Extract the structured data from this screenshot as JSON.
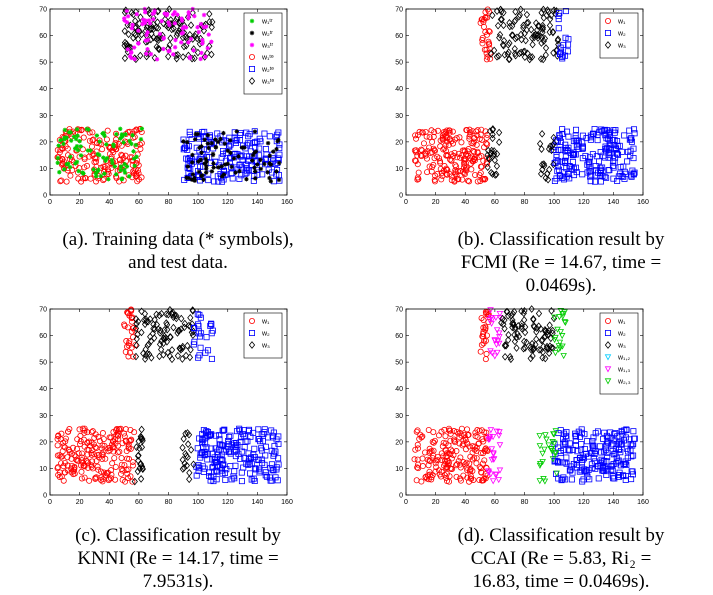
{
  "chart_data": [
    {
      "type": "scatter",
      "id": "a",
      "caption": [
        "(a). Training data (* symbols),",
        "and test data."
      ],
      "xlim": [
        0,
        160
      ],
      "ylim": [
        0,
        70
      ],
      "xticks": [
        0,
        20,
        40,
        60,
        80,
        100,
        120,
        140,
        160
      ],
      "yticks": [
        0,
        10,
        20,
        30,
        40,
        50,
        60,
        70
      ],
      "legend": {
        "position": "top-right",
        "entries": [
          {
            "label": "w₁ᵗʳ",
            "marker": "star",
            "color": "#00cc00"
          },
          {
            "label": "w₂ᵗʳ",
            "marker": "star",
            "color": "#000000"
          },
          {
            "label": "w₃ᵗʳ",
            "marker": "star",
            "color": "#ff00ff"
          },
          {
            "label": "w₁ᵗᵉ",
            "marker": "circle",
            "color": "#ff0000"
          },
          {
            "label": "w₂ᵗᵉ",
            "marker": "square",
            "color": "#0000ff"
          },
          {
            "label": "w₃ᵗᵉ",
            "marker": "diamond",
            "color": "#000000"
          }
        ]
      },
      "series": [
        {
          "marker": "circle",
          "color": "#ff0000",
          "n": 200,
          "x": [
            5,
            62
          ],
          "y": [
            5,
            25
          ]
        },
        {
          "marker": "star",
          "color": "#00cc00",
          "n": 90,
          "x": [
            5,
            62
          ],
          "y": [
            5,
            25
          ]
        },
        {
          "marker": "square",
          "color": "#0000ff",
          "n": 200,
          "x": [
            90,
            155
          ],
          "y": [
            5,
            24
          ]
        },
        {
          "marker": "star",
          "color": "#000000",
          "n": 90,
          "x": [
            90,
            155
          ],
          "y": [
            5,
            24
          ]
        },
        {
          "marker": "diamond",
          "color": "#000000",
          "n": 140,
          "x": [
            50,
            110
          ],
          "y": [
            51,
            70
          ]
        },
        {
          "marker": "star",
          "color": "#ff00ff",
          "n": 90,
          "x": [
            50,
            110
          ],
          "y": [
            51,
            70
          ]
        }
      ]
    },
    {
      "type": "scatter",
      "id": "b",
      "caption": [
        "(b). Classification result by",
        "FCMI (Re = 14.67, time =",
        "0.0469s)."
      ],
      "xlim": [
        0,
        160
      ],
      "ylim": [
        0,
        70
      ],
      "xticks": [
        0,
        20,
        40,
        60,
        80,
        100,
        120,
        140,
        160
      ],
      "yticks": [
        0,
        10,
        20,
        30,
        40,
        50,
        60,
        70
      ],
      "legend": {
        "position": "top-right",
        "entries": [
          {
            "label": "w₁",
            "marker": "circle",
            "color": "#ff0000"
          },
          {
            "label": "w₂",
            "marker": "square",
            "color": "#0000ff"
          },
          {
            "label": "w₃",
            "marker": "diamond",
            "color": "#000000"
          }
        ]
      },
      "series": [
        {
          "marker": "circle",
          "color": "#ff0000",
          "n": 210,
          "x": [
            5,
            55
          ],
          "y": [
            5,
            25
          ]
        },
        {
          "marker": "diamond",
          "color": "#000000",
          "n": 25,
          "x": [
            55,
            63
          ],
          "y": [
            5,
            25
          ]
        },
        {
          "marker": "square",
          "color": "#0000ff",
          "n": 200,
          "x": [
            100,
            155
          ],
          "y": [
            5,
            25
          ]
        },
        {
          "marker": "diamond",
          "color": "#000000",
          "n": 20,
          "x": [
            90,
            100
          ],
          "y": [
            5,
            25
          ]
        },
        {
          "marker": "circle",
          "color": "#ff0000",
          "n": 30,
          "x": [
            50,
            57
          ],
          "y": [
            51,
            70
          ]
        },
        {
          "marker": "diamond",
          "color": "#000000",
          "n": 110,
          "x": [
            57,
            103
          ],
          "y": [
            51,
            70
          ]
        },
        {
          "marker": "square",
          "color": "#0000ff",
          "n": 18,
          "x": [
            103,
            110
          ],
          "y": [
            51,
            70
          ]
        }
      ]
    },
    {
      "type": "scatter",
      "id": "c",
      "caption": [
        "(c). Classification result by",
        "KNNI (Re = 14.17, time =",
        "7.9531s)."
      ],
      "xlim": [
        0,
        160
      ],
      "ylim": [
        0,
        70
      ],
      "xticks": [
        0,
        20,
        40,
        60,
        80,
        100,
        120,
        140,
        160
      ],
      "yticks": [
        0,
        10,
        20,
        30,
        40,
        50,
        60,
        70
      ],
      "legend": {
        "position": "top-right",
        "entries": [
          {
            "label": "w₁",
            "marker": "circle",
            "color": "#ff0000"
          },
          {
            "label": "w₂",
            "marker": "square",
            "color": "#0000ff"
          },
          {
            "label": "w₃",
            "marker": "diamond",
            "color": "#000000"
          }
        ]
      },
      "series": [
        {
          "marker": "circle",
          "color": "#ff0000",
          "n": 210,
          "x": [
            5,
            57
          ],
          "y": [
            5,
            25
          ]
        },
        {
          "marker": "diamond",
          "color": "#000000",
          "n": 22,
          "x": [
            57,
            63
          ],
          "y": [
            5,
            25
          ]
        },
        {
          "marker": "square",
          "color": "#0000ff",
          "n": 200,
          "x": [
            97,
            155
          ],
          "y": [
            5,
            25
          ]
        },
        {
          "marker": "diamond",
          "color": "#000000",
          "n": 18,
          "x": [
            89,
            97
          ],
          "y": [
            5,
            25
          ]
        },
        {
          "marker": "circle",
          "color": "#ff0000",
          "n": 30,
          "x": [
            50,
            58
          ],
          "y": [
            51,
            70
          ]
        },
        {
          "marker": "diamond",
          "color": "#000000",
          "n": 100,
          "x": [
            58,
            97
          ],
          "y": [
            51,
            70
          ]
        },
        {
          "marker": "square",
          "color": "#0000ff",
          "n": 25,
          "x": [
            97,
            110
          ],
          "y": [
            51,
            70
          ]
        }
      ]
    },
    {
      "type": "scatter",
      "id": "d",
      "caption": [
        "(d). Classification result by",
        "CCAI (Re = 5.83, Ri₂ =",
        "16.83, time = 0.0469s)."
      ],
      "xlim": [
        0,
        160
      ],
      "ylim": [
        0,
        70
      ],
      "xticks": [
        0,
        20,
        40,
        60,
        80,
        100,
        120,
        140,
        160
      ],
      "yticks": [
        0,
        10,
        20,
        30,
        40,
        50,
        60,
        70
      ],
      "legend": {
        "position": "top-right",
        "entries": [
          {
            "label": "w₁",
            "marker": "circle",
            "color": "#ff0000"
          },
          {
            "label": "w₂",
            "marker": "square",
            "color": "#0000ff"
          },
          {
            "label": "w₃",
            "marker": "diamond",
            "color": "#000000"
          },
          {
            "label": "w₁,₂",
            "marker": "triangle-down",
            "color": "#00ccff"
          },
          {
            "label": "w₁,₃",
            "marker": "triangle-down",
            "color": "#ff00ff"
          },
          {
            "label": "w₂,₃",
            "marker": "triangle-down",
            "color": "#00cc00"
          }
        ]
      },
      "series": [
        {
          "marker": "circle",
          "color": "#ff0000",
          "n": 200,
          "x": [
            5,
            55
          ],
          "y": [
            5,
            25
          ]
        },
        {
          "marker": "triangle-down",
          "color": "#ff00ff",
          "n": 25,
          "x": [
            55,
            64
          ],
          "y": [
            5,
            25
          ]
        },
        {
          "marker": "square",
          "color": "#0000ff",
          "n": 200,
          "x": [
            100,
            155
          ],
          "y": [
            5,
            25
          ]
        },
        {
          "marker": "triangle-down",
          "color": "#00cc00",
          "n": 25,
          "x": [
            90,
            102
          ],
          "y": [
            5,
            25
          ]
        },
        {
          "marker": "circle",
          "color": "#ff0000",
          "n": 25,
          "x": [
            50,
            56
          ],
          "y": [
            51,
            70
          ]
        },
        {
          "marker": "triangle-down",
          "color": "#ff00ff",
          "n": 20,
          "x": [
            56,
            64
          ],
          "y": [
            51,
            70
          ]
        },
        {
          "marker": "diamond",
          "color": "#000000",
          "n": 95,
          "x": [
            64,
            100
          ],
          "y": [
            51,
            70
          ]
        },
        {
          "marker": "triangle-down",
          "color": "#00cc00",
          "n": 20,
          "x": [
            100,
            108
          ],
          "y": [
            51,
            70
          ]
        }
      ]
    }
  ]
}
